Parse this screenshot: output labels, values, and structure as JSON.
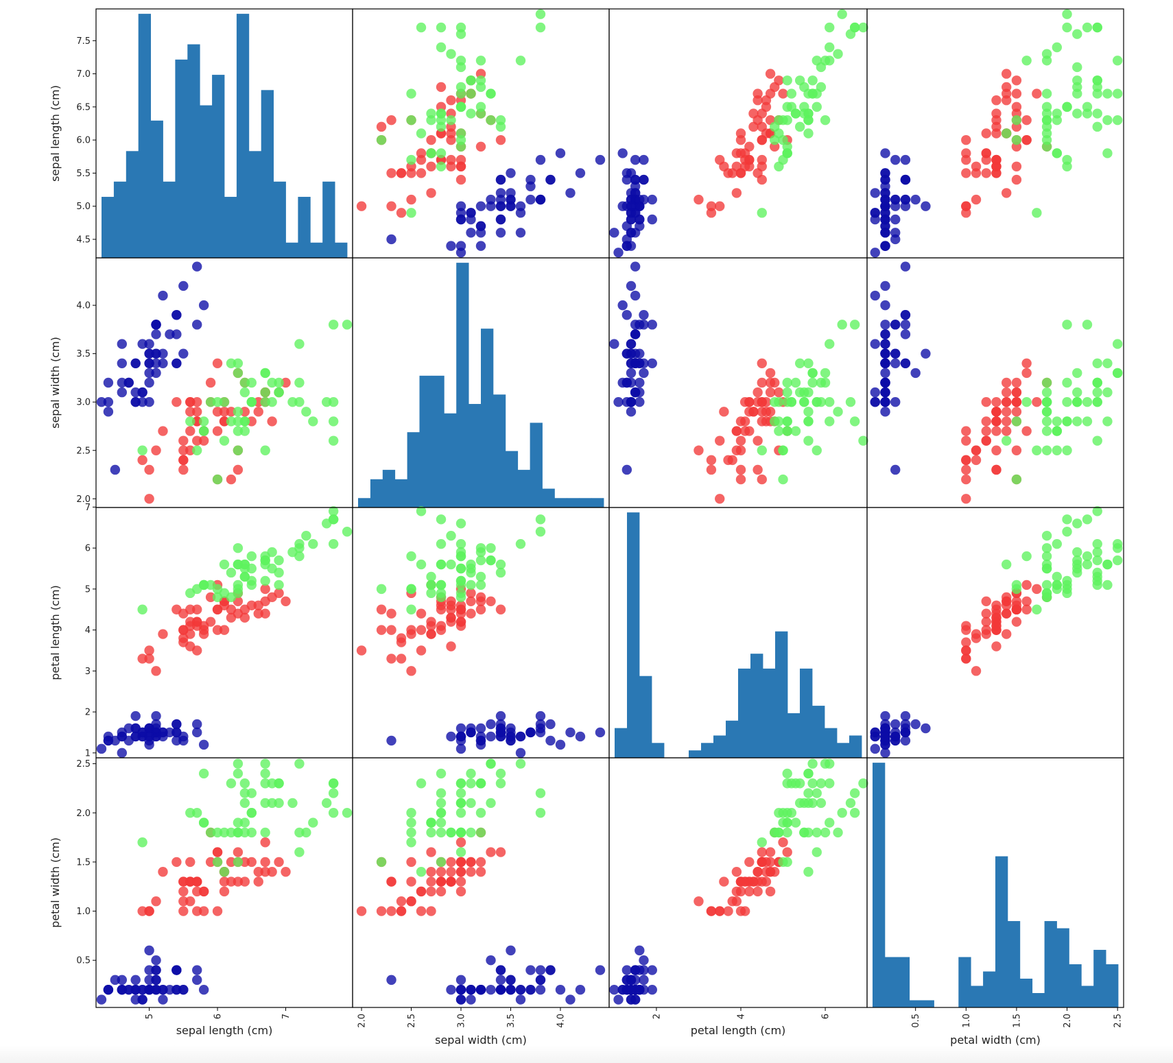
{
  "colors": {
    "hist": "#2a78b4",
    "class_0": "#0c0ca6",
    "class_1": "#f23838",
    "class_2": "#5ef25e"
  },
  "chart_data": {
    "type": "scatter",
    "title": "",
    "variables": [
      "sepal length (cm)",
      "sepal width (cm)",
      "petal length (cm)",
      "petal width (cm)"
    ],
    "xlabels": [
      "sepal length (cm)",
      "sepal width (cm)",
      "petal length (cm)",
      "petal width (cm)"
    ],
    "ylabels": [
      "sepal length (cm)",
      "sepal width (cm)",
      "petal length (cm)",
      "petal width (cm)"
    ],
    "ranges": [
      [
        4.22,
        7.98
      ],
      [
        1.91,
        4.49
      ],
      [
        0.88,
        6.99
      ],
      [
        0.02,
        2.56
      ]
    ],
    "x_ticks": [
      [
        5,
        6,
        7
      ],
      [
        2.0,
        2.5,
        3.0,
        3.5,
        4.0
      ],
      [
        2,
        4,
        6
      ],
      [
        0.5,
        1.0,
        1.5,
        2.0,
        2.5
      ]
    ],
    "x_tick_labels": [
      [
        "5",
        "6",
        "7"
      ],
      [
        "2.0",
        "2.5",
        "3.0",
        "3.5",
        "4.0"
      ],
      [
        "2",
        "4",
        "6"
      ],
      [
        "0.5",
        "1.0",
        "1.5",
        "2.0",
        "2.5"
      ]
    ],
    "y_ticks": [
      [
        4.5,
        5.0,
        5.5,
        6.0,
        6.5,
        7.0,
        7.5
      ],
      [
        2.0,
        2.5,
        3.0,
        3.5,
        4.0
      ],
      [
        1,
        2,
        3,
        4,
        5,
        6,
        7
      ],
      [
        0.5,
        1.0,
        1.5,
        2.0,
        2.5
      ]
    ],
    "y_tick_labels": [
      [
        "4.5",
        "5.0",
        "5.5",
        "6.0",
        "6.5",
        "7.0",
        "7.5"
      ],
      [
        "2.0",
        "2.5",
        "3.0",
        "3.5",
        "4.0"
      ],
      [
        "1",
        "2",
        "3",
        "4",
        "5",
        "6",
        "7"
      ],
      [
        "0.5",
        "1.0",
        "1.5",
        "2.0",
        "2.5"
      ]
    ],
    "hist_bins": 20,
    "diagonal": "hist",
    "classes": [
      {
        "rows": [
          [
            5.1,
            3.5,
            1.4,
            0.2
          ],
          [
            4.9,
            3.0,
            1.4,
            0.2
          ],
          [
            4.7,
            3.2,
            1.3,
            0.2
          ],
          [
            4.6,
            3.1,
            1.5,
            0.2
          ],
          [
            5.0,
            3.6,
            1.4,
            0.2
          ],
          [
            5.4,
            3.9,
            1.7,
            0.4
          ],
          [
            4.6,
            3.4,
            1.4,
            0.3
          ],
          [
            5.0,
            3.4,
            1.5,
            0.2
          ],
          [
            4.4,
            2.9,
            1.4,
            0.2
          ],
          [
            4.9,
            3.1,
            1.5,
            0.1
          ],
          [
            5.4,
            3.7,
            1.5,
            0.2
          ],
          [
            4.8,
            3.4,
            1.6,
            0.2
          ],
          [
            4.8,
            3.0,
            1.4,
            0.1
          ],
          [
            4.3,
            3.0,
            1.1,
            0.1
          ],
          [
            5.8,
            4.0,
            1.2,
            0.2
          ],
          [
            5.7,
            4.4,
            1.5,
            0.4
          ],
          [
            5.4,
            3.9,
            1.3,
            0.4
          ],
          [
            5.1,
            3.5,
            1.4,
            0.3
          ],
          [
            5.7,
            3.8,
            1.7,
            0.3
          ],
          [
            5.1,
            3.8,
            1.5,
            0.3
          ],
          [
            5.4,
            3.4,
            1.7,
            0.2
          ],
          [
            5.1,
            3.7,
            1.5,
            0.4
          ],
          [
            4.6,
            3.6,
            1.0,
            0.2
          ],
          [
            5.1,
            3.3,
            1.7,
            0.5
          ],
          [
            4.8,
            3.4,
            1.9,
            0.2
          ],
          [
            5.0,
            3.0,
            1.6,
            0.2
          ],
          [
            5.0,
            3.4,
            1.6,
            0.4
          ],
          [
            5.2,
            3.5,
            1.5,
            0.2
          ],
          [
            5.2,
            3.4,
            1.4,
            0.2
          ],
          [
            4.7,
            3.2,
            1.6,
            0.2
          ],
          [
            4.8,
            3.1,
            1.6,
            0.2
          ],
          [
            5.4,
            3.4,
            1.5,
            0.4
          ],
          [
            5.2,
            4.1,
            1.5,
            0.1
          ],
          [
            5.5,
            4.2,
            1.4,
            0.2
          ],
          [
            4.9,
            3.1,
            1.5,
            0.2
          ],
          [
            5.0,
            3.2,
            1.2,
            0.2
          ],
          [
            5.5,
            3.5,
            1.3,
            0.2
          ],
          [
            4.9,
            3.6,
            1.4,
            0.1
          ],
          [
            4.4,
            3.0,
            1.3,
            0.2
          ],
          [
            5.1,
            3.4,
            1.5,
            0.2
          ],
          [
            5.0,
            3.5,
            1.3,
            0.3
          ],
          [
            4.5,
            2.3,
            1.3,
            0.3
          ],
          [
            4.4,
            3.2,
            1.3,
            0.2
          ],
          [
            5.0,
            3.5,
            1.6,
            0.6
          ],
          [
            5.1,
            3.8,
            1.9,
            0.4
          ],
          [
            4.8,
            3.0,
            1.4,
            0.3
          ],
          [
            5.1,
            3.8,
            1.6,
            0.2
          ],
          [
            4.6,
            3.2,
            1.4,
            0.2
          ],
          [
            5.3,
            3.7,
            1.5,
            0.2
          ],
          [
            5.0,
            3.3,
            1.4,
            0.2
          ]
        ]
      },
      {
        "rows": [
          [
            7.0,
            3.2,
            4.7,
            1.4
          ],
          [
            6.4,
            3.2,
            4.5,
            1.5
          ],
          [
            6.9,
            3.1,
            4.9,
            1.5
          ],
          [
            5.5,
            2.3,
            4.0,
            1.3
          ],
          [
            6.5,
            2.8,
            4.6,
            1.5
          ],
          [
            5.7,
            2.8,
            4.5,
            1.3
          ],
          [
            6.3,
            3.3,
            4.7,
            1.6
          ],
          [
            4.9,
            2.4,
            3.3,
            1.0
          ],
          [
            6.6,
            2.9,
            4.6,
            1.3
          ],
          [
            5.2,
            2.7,
            3.9,
            1.4
          ],
          [
            5.0,
            2.0,
            3.5,
            1.0
          ],
          [
            5.9,
            3.0,
            4.2,
            1.5
          ],
          [
            6.0,
            2.2,
            4.0,
            1.0
          ],
          [
            6.1,
            2.9,
            4.7,
            1.4
          ],
          [
            5.6,
            2.9,
            3.6,
            1.3
          ],
          [
            6.7,
            3.1,
            4.4,
            1.4
          ],
          [
            5.6,
            3.0,
            4.5,
            1.5
          ],
          [
            5.8,
            2.7,
            4.1,
            1.0
          ],
          [
            6.2,
            2.2,
            4.5,
            1.5
          ],
          [
            5.6,
            2.5,
            3.9,
            1.1
          ],
          [
            5.9,
            3.2,
            4.8,
            1.8
          ],
          [
            6.1,
            2.8,
            4.0,
            1.3
          ],
          [
            6.3,
            2.5,
            4.9,
            1.5
          ],
          [
            6.1,
            2.8,
            4.7,
            1.2
          ],
          [
            6.4,
            2.9,
            4.3,
            1.3
          ],
          [
            6.6,
            3.0,
            4.4,
            1.4
          ],
          [
            6.8,
            2.8,
            4.8,
            1.4
          ],
          [
            6.7,
            3.0,
            5.0,
            1.7
          ],
          [
            6.0,
            2.9,
            4.5,
            1.5
          ],
          [
            5.7,
            2.6,
            3.5,
            1.0
          ],
          [
            5.5,
            2.4,
            3.8,
            1.1
          ],
          [
            5.5,
            2.4,
            3.7,
            1.0
          ],
          [
            5.8,
            2.7,
            3.9,
            1.2
          ],
          [
            6.0,
            2.7,
            5.1,
            1.6
          ],
          [
            5.4,
            3.0,
            4.5,
            1.5
          ],
          [
            6.0,
            3.4,
            4.5,
            1.6
          ],
          [
            6.7,
            3.1,
            4.7,
            1.5
          ],
          [
            6.3,
            2.3,
            4.4,
            1.3
          ],
          [
            5.6,
            3.0,
            4.1,
            1.3
          ],
          [
            5.5,
            2.5,
            4.0,
            1.3
          ],
          [
            5.5,
            2.6,
            4.4,
            1.2
          ],
          [
            6.1,
            3.0,
            4.6,
            1.4
          ],
          [
            5.8,
            2.6,
            4.0,
            1.2
          ],
          [
            5.0,
            2.3,
            3.3,
            1.0
          ],
          [
            5.6,
            2.7,
            4.2,
            1.3
          ],
          [
            5.7,
            3.0,
            4.2,
            1.2
          ],
          [
            5.7,
            2.9,
            4.2,
            1.3
          ],
          [
            6.2,
            2.9,
            4.3,
            1.3
          ],
          [
            5.1,
            2.5,
            3.0,
            1.1
          ],
          [
            5.7,
            2.8,
            4.1,
            1.3
          ]
        ]
      },
      {
        "rows": [
          [
            6.3,
            3.3,
            6.0,
            2.5
          ],
          [
            5.8,
            2.7,
            5.1,
            1.9
          ],
          [
            7.1,
            3.0,
            5.9,
            2.1
          ],
          [
            6.3,
            2.9,
            5.6,
            1.8
          ],
          [
            6.5,
            3.0,
            5.8,
            2.2
          ],
          [
            7.6,
            3.0,
            6.6,
            2.1
          ],
          [
            4.9,
            2.5,
            4.5,
            1.7
          ],
          [
            7.3,
            2.9,
            6.3,
            1.8
          ],
          [
            6.7,
            2.5,
            5.8,
            1.8
          ],
          [
            7.2,
            3.6,
            6.1,
            2.5
          ],
          [
            6.5,
            3.2,
            5.1,
            2.0
          ],
          [
            6.4,
            2.7,
            5.3,
            1.9
          ],
          [
            6.8,
            3.0,
            5.5,
            2.1
          ],
          [
            5.7,
            2.5,
            5.0,
            2.0
          ],
          [
            5.8,
            2.8,
            5.1,
            2.4
          ],
          [
            6.4,
            3.2,
            5.3,
            2.3
          ],
          [
            6.5,
            3.0,
            5.5,
            1.8
          ],
          [
            7.7,
            3.8,
            6.7,
            2.2
          ],
          [
            7.7,
            2.6,
            6.9,
            2.3
          ],
          [
            6.0,
            2.2,
            5.0,
            1.5
          ],
          [
            6.9,
            3.2,
            5.7,
            2.3
          ],
          [
            5.6,
            2.8,
            4.9,
            2.0
          ],
          [
            7.7,
            2.8,
            6.7,
            2.0
          ],
          [
            6.3,
            2.7,
            4.9,
            1.8
          ],
          [
            6.7,
            3.3,
            5.7,
            2.1
          ],
          [
            7.2,
            3.2,
            6.0,
            1.8
          ],
          [
            6.2,
            2.8,
            4.8,
            1.8
          ],
          [
            6.1,
            3.0,
            4.9,
            1.8
          ],
          [
            6.4,
            2.8,
            5.6,
            2.1
          ],
          [
            7.2,
            3.0,
            5.8,
            1.6
          ],
          [
            7.4,
            2.8,
            6.1,
            1.9
          ],
          [
            7.9,
            3.8,
            6.4,
            2.0
          ],
          [
            6.4,
            2.8,
            5.6,
            2.2
          ],
          [
            6.3,
            2.8,
            5.1,
            1.5
          ],
          [
            6.1,
            2.6,
            5.6,
            1.4
          ],
          [
            7.7,
            3.0,
            6.1,
            2.3
          ],
          [
            6.3,
            3.4,
            5.6,
            2.4
          ],
          [
            6.4,
            3.1,
            5.5,
            1.8
          ],
          [
            6.0,
            3.0,
            4.8,
            1.8
          ],
          [
            6.9,
            3.1,
            5.4,
            2.1
          ],
          [
            6.7,
            3.1,
            5.6,
            2.4
          ],
          [
            6.9,
            3.1,
            5.1,
            2.3
          ],
          [
            5.8,
            2.7,
            5.1,
            1.9
          ],
          [
            6.8,
            3.2,
            5.9,
            2.3
          ],
          [
            6.7,
            3.3,
            5.7,
            2.5
          ],
          [
            6.7,
            3.0,
            5.2,
            2.3
          ],
          [
            6.3,
            2.5,
            5.0,
            1.9
          ],
          [
            6.5,
            3.0,
            5.2,
            2.0
          ],
          [
            6.2,
            3.4,
            5.4,
            2.3
          ],
          [
            5.9,
            3.0,
            5.1,
            1.8
          ]
        ]
      }
    ]
  }
}
